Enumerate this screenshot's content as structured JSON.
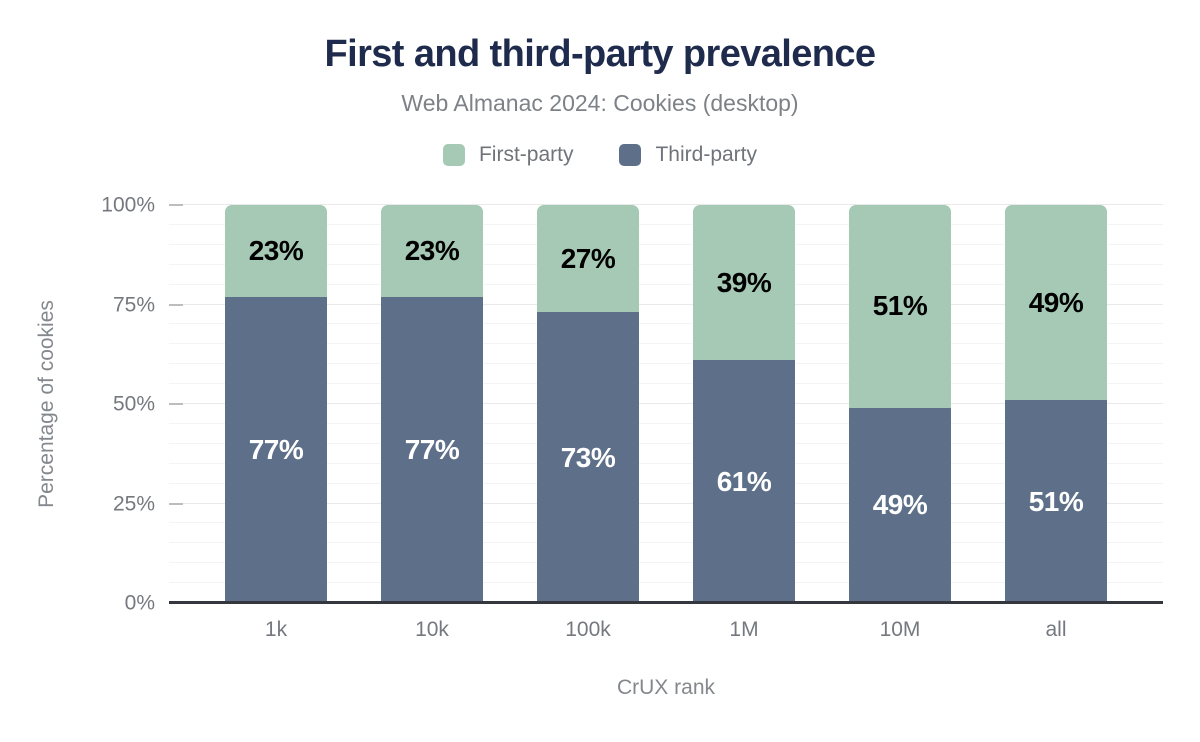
{
  "chart_data": {
    "type": "bar",
    "stacked": true,
    "title": "First and third-party prevalence",
    "subtitle": "Web Almanac 2024: Cookies (desktop)",
    "xlabel": "CrUX rank",
    "ylabel": "Percentage of cookies",
    "categories": [
      "1k",
      "10k",
      "100k",
      "1M",
      "10M",
      "all"
    ],
    "series": [
      {
        "name": "First-party",
        "color": "#a5c9b5",
        "text_color": "#000000",
        "values": [
          23,
          23,
          27,
          39,
          51,
          49
        ]
      },
      {
        "name": "Third-party",
        "color": "#5e7089",
        "text_color": "#ffffff",
        "values": [
          77,
          77,
          73,
          61,
          49,
          51
        ]
      }
    ],
    "value_suffix": "%",
    "ylim": [
      0,
      100
    ],
    "yticks": [
      {
        "value": 0,
        "label": "0%"
      },
      {
        "value": 25,
        "label": "25%"
      },
      {
        "value": 50,
        "label": "50%"
      },
      {
        "value": 75,
        "label": "75%"
      },
      {
        "value": 100,
        "label": "100%"
      }
    ],
    "minor_grid_step": 5,
    "grid": true,
    "legend_position": "top"
  },
  "colors": {
    "background": "#ffffff",
    "title": "#1f2b4d",
    "subtitle": "#7d8288",
    "legend_text": "#6f747a",
    "axis_text": "#75797f",
    "axis_title": "#84888d",
    "grid_minor": "#f4f4f4",
    "grid_major": "#e9e9e9",
    "tick": "#bdbdbd",
    "axis_line": "#34383e"
  }
}
